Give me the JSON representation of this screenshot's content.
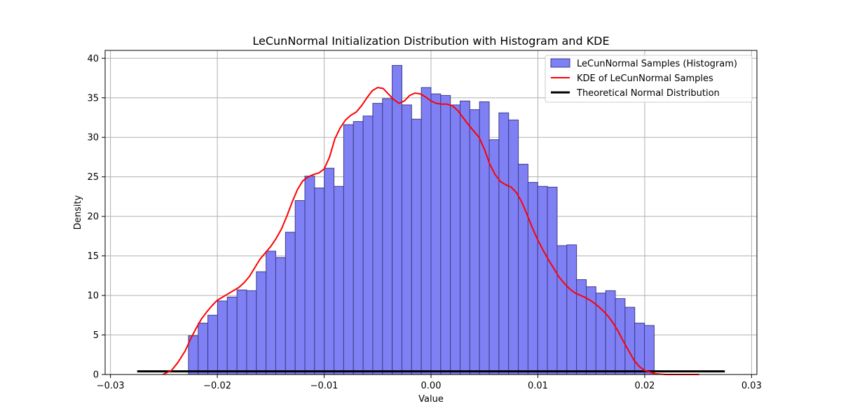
{
  "chart_data": {
    "type": "bar",
    "title": "LeCunNormal Initialization Distribution with Histogram and KDE",
    "xlabel": "Value",
    "ylabel": "Density",
    "xlim": [
      -0.0305,
      0.0305
    ],
    "ylim": [
      0,
      41
    ],
    "x_ticks": [
      -0.03,
      -0.02,
      -0.01,
      0.0,
      0.01,
      0.02,
      0.03
    ],
    "x_tick_labels": [
      "−0.03",
      "−0.02",
      "−0.01",
      "0.00",
      "0.01",
      "0.02",
      "0.03"
    ],
    "y_ticks": [
      0,
      5,
      10,
      15,
      20,
      25,
      30,
      35,
      40
    ],
    "y_tick_labels": [
      "0",
      "5",
      "10",
      "15",
      "20",
      "25",
      "30",
      "35",
      "40"
    ],
    "grid": true,
    "legend_position": "top-right",
    "colors": {
      "hist_fill": "#8080f5",
      "hist_edge": "#3b3b8a",
      "kde": "#ff0000",
      "normal": "#000000",
      "grid": "#b0b0b0"
    },
    "histogram": {
      "name": "LeCunNormal Samples (Histogram)",
      "bin_start": -0.0227,
      "bin_width": 0.000908,
      "values": [
        4.9,
        6.5,
        7.5,
        9.3,
        9.8,
        10.7,
        10.6,
        13.0,
        15.6,
        14.8,
        18.0,
        22.0,
        25.1,
        23.6,
        26.1,
        23.8,
        31.6,
        32.0,
        32.7,
        34.3,
        34.9,
        39.1,
        34.1,
        32.3,
        36.3,
        35.5,
        35.3,
        34.1,
        34.6,
        33.5,
        34.5,
        29.7,
        33.1,
        32.2,
        26.6,
        24.3,
        23.8,
        23.7,
        16.3,
        16.4,
        12.0,
        11.1,
        10.3,
        10.6,
        9.6,
        8.5,
        6.5,
        6.2
      ]
    },
    "kde": {
      "name": "KDE of LeCunNormal Samples",
      "x": [
        -0.0251,
        -0.0243,
        -0.0237,
        -0.023,
        -0.0225,
        -0.022,
        -0.0215,
        -0.021,
        -0.0205,
        -0.02,
        -0.0195,
        -0.019,
        -0.0185,
        -0.018,
        -0.0175,
        -0.017,
        -0.0165,
        -0.016,
        -0.0155,
        -0.015,
        -0.0145,
        -0.014,
        -0.0135,
        -0.013,
        -0.0125,
        -0.012,
        -0.0115,
        -0.011,
        -0.0105,
        -0.01,
        -0.0095,
        -0.009,
        -0.0085,
        -0.008,
        -0.0075,
        -0.007,
        -0.0065,
        -0.006,
        -0.0055,
        -0.005,
        -0.0045,
        -0.004,
        -0.0035,
        -0.003,
        -0.0025,
        -0.002,
        -0.0015,
        -0.001,
        -0.0005,
        0.0,
        0.0005,
        0.001,
        0.0015,
        0.002,
        0.0025,
        0.003,
        0.0035,
        0.004,
        0.0045,
        0.005,
        0.0055,
        0.006,
        0.0065,
        0.007,
        0.0075,
        0.008,
        0.0085,
        0.009,
        0.0095,
        0.01,
        0.0105,
        0.011,
        0.0115,
        0.012,
        0.0125,
        0.013,
        0.0135,
        0.014,
        0.0145,
        0.015,
        0.0155,
        0.016,
        0.0165,
        0.017,
        0.0175,
        0.018,
        0.0185,
        0.019,
        0.0195,
        0.02,
        0.0205,
        0.021,
        0.0215,
        0.022,
        0.0225,
        0.023,
        0.0235,
        0.024,
        0.0245,
        0.0251
      ],
      "y": [
        0.0,
        0.5,
        1.5,
        3.0,
        4.5,
        5.8,
        7.0,
        7.9,
        8.7,
        9.4,
        9.8,
        10.2,
        10.6,
        11.0,
        11.6,
        12.4,
        13.5,
        14.6,
        15.4,
        16.2,
        17.2,
        18.4,
        20.0,
        21.8,
        23.4,
        24.5,
        25.0,
        25.3,
        25.5,
        26.0,
        27.5,
        29.8,
        31.2,
        32.2,
        32.8,
        33.2,
        34.0,
        35.0,
        35.9,
        36.3,
        36.2,
        35.5,
        34.8,
        34.3,
        34.6,
        35.3,
        35.6,
        35.5,
        35.1,
        34.6,
        34.3,
        34.2,
        34.2,
        34.0,
        33.4,
        32.5,
        31.6,
        30.8,
        30.0,
        28.5,
        26.6,
        25.3,
        24.4,
        24.0,
        23.7,
        23.0,
        21.8,
        20.2,
        18.5,
        17.0,
        15.7,
        14.5,
        13.4,
        12.3,
        11.5,
        10.8,
        10.3,
        10.0,
        9.7,
        9.3,
        8.8,
        8.2,
        7.5,
        6.6,
        5.5,
        4.2,
        3.0,
        1.8,
        1.0,
        0.5,
        0.3,
        0.1,
        0.05,
        0.0,
        0.0,
        0.0,
        0.0,
        0.0,
        0.0,
        0.0
      ]
    },
    "normal": {
      "name": "Theoretical Normal Distribution",
      "x": [
        -0.0275,
        0.0275
      ],
      "y": [
        0.4,
        0.4
      ]
    }
  }
}
